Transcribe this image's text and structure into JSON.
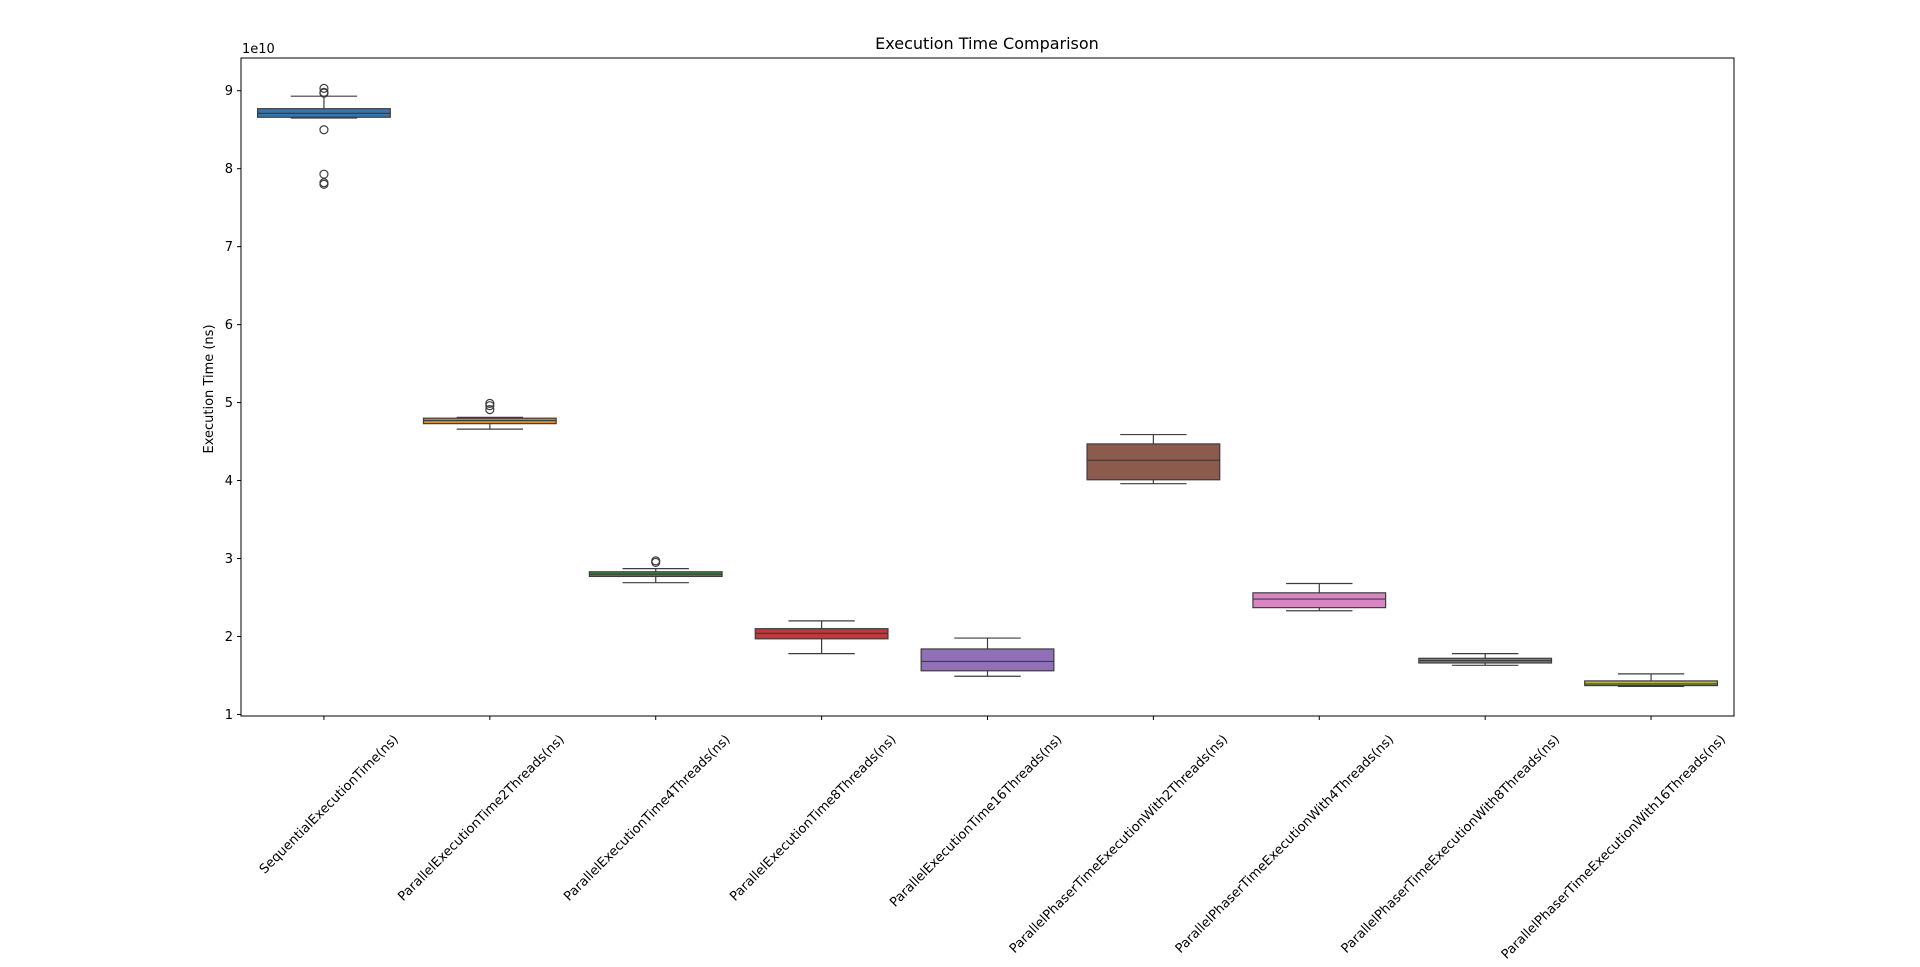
{
  "chart_data": {
    "type": "box",
    "title": "Execution Time Comparison",
    "xlabel": "",
    "ylabel": "Execution Time (ns)",
    "y_offset_label": "1e10",
    "y_scale_factor": 10000000000.0,
    "ylim": [
      0.98,
      9.42
    ],
    "yticks": [
      1,
      2,
      3,
      4,
      5,
      6,
      7,
      8,
      9
    ],
    "grid": false,
    "categories": [
      "SequentialExecutionTime(ns)",
      "ParallelExecutionTime2Threads(ns)",
      "ParallelExecutionTime4Threads(ns)",
      "ParallelExecutionTime8Threads(ns)",
      "ParallelExecutionTime16Threads(ns)",
      "ParallelPhaserTimeExecutionWith2Threads(ns)",
      "ParallelPhaserTimeExecutionWith4Threads(ns)",
      "ParallelPhaserTimeExecutionWith8Threads(ns)",
      "ParallelPhaserTimeExecutionWith16Threads(ns)"
    ],
    "boxes": [
      {
        "whisker_low": 8.65,
        "q1": 8.66,
        "median": 8.71,
        "q3": 8.77,
        "whisker_high": 8.93,
        "outliers": [
          9.03,
          8.98,
          8.97,
          8.5,
          7.93,
          7.82,
          7.8
        ],
        "color": "#3a75a8"
      },
      {
        "whisker_low": 4.66,
        "q1": 4.73,
        "median": 4.77,
        "q3": 4.8,
        "whisker_high": 4.81,
        "outliers": [
          4.99,
          4.96,
          4.91
        ],
        "color": "#e08a2c"
      },
      {
        "whisker_low": 2.69,
        "q1": 2.77,
        "median": 2.8,
        "q3": 2.83,
        "whisker_high": 2.87,
        "outliers": [
          2.97,
          2.95
        ],
        "color": "#3d8f3d"
      },
      {
        "whisker_low": 1.78,
        "q1": 1.97,
        "median": 2.04,
        "q3": 2.1,
        "whisker_high": 2.2,
        "outliers": [],
        "color": "#c0393b"
      },
      {
        "whisker_low": 1.49,
        "q1": 1.56,
        "median": 1.68,
        "q3": 1.84,
        "whisker_high": 1.98,
        "outliers": [],
        "color": "#9270b8"
      },
      {
        "whisker_low": 3.96,
        "q1": 4.01,
        "median": 4.26,
        "q3": 4.47,
        "whisker_high": 4.59,
        "outliers": [],
        "color": "#8c5b4e"
      },
      {
        "whisker_low": 2.33,
        "q1": 2.37,
        "median": 2.48,
        "q3": 2.56,
        "whisker_high": 2.68,
        "outliers": [],
        "color": "#d987c4"
      },
      {
        "whisker_low": 1.63,
        "q1": 1.66,
        "median": 1.69,
        "q3": 1.72,
        "whisker_high": 1.78,
        "outliers": [],
        "color": "#7f7f7f"
      },
      {
        "whisker_low": 1.36,
        "q1": 1.37,
        "median": 1.39,
        "q3": 1.43,
        "whisker_high": 1.52,
        "outliers": [],
        "color": "#b8b840"
      }
    ]
  }
}
